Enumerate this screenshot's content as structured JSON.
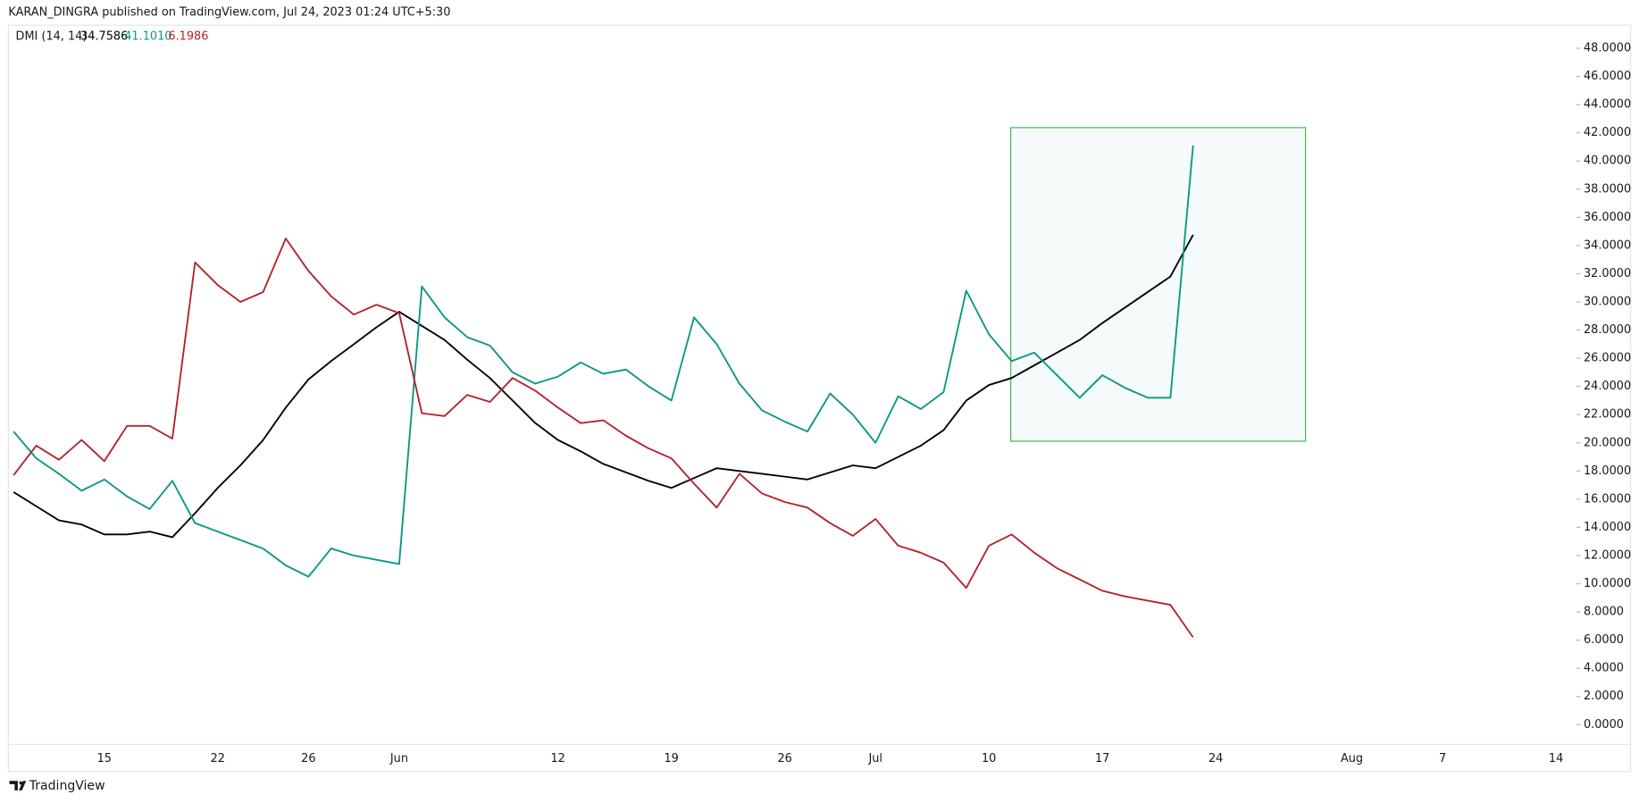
{
  "header": {
    "byline": "KARAN_DINGRA published on TradingView.com, Jul 24, 2023 01:24 UTC+5:30"
  },
  "footer": {
    "brand": "TradingView"
  },
  "chart_data": {
    "type": "line",
    "indicator": "DMI (14, 14)",
    "legend_values": [
      "34.7586",
      "41.1010",
      "6.1986"
    ],
    "categories": [
      null,
      null,
      null,
      null,
      "15",
      null,
      null,
      null,
      null,
      "22",
      null,
      null,
      null,
      "26",
      null,
      null,
      null,
      "Jun",
      null,
      null,
      null,
      null,
      null,
      null,
      "12",
      null,
      null,
      null,
      null,
      "19",
      null,
      null,
      null,
      null,
      "26",
      null,
      null,
      null,
      "Jul",
      null,
      null,
      null,
      null,
      "10",
      null,
      null,
      null,
      null,
      "17",
      null,
      null,
      null,
      null,
      "24",
      null,
      null,
      null,
      null,
      null,
      "Aug",
      null,
      null,
      null,
      "7",
      null,
      null,
      null,
      null,
      "14",
      null
    ],
    "series": [
      {
        "color": "#000000",
        "values": [
          16.5,
          15.5,
          14.5,
          14.2,
          13.5,
          13.5,
          13.7,
          13.3,
          15.0,
          16.8,
          18.4,
          20.2,
          22.5,
          24.5,
          25.8,
          27.0,
          28.2,
          29.3,
          28.3,
          27.3,
          25.9,
          24.6,
          23.0,
          21.4,
          20.2,
          19.4,
          18.5,
          17.9,
          17.3,
          16.8,
          17.5,
          18.2,
          18.0,
          17.8,
          17.6,
          17.4,
          17.9,
          18.4,
          18.2,
          19.0,
          19.8,
          20.9,
          23.0,
          24.1,
          24.6,
          25.5,
          26.4,
          27.3,
          28.5,
          29.6,
          30.7,
          31.8,
          34.7586,
          null,
          null,
          null,
          null,
          null,
          null,
          null,
          null,
          null,
          null,
          null,
          null,
          null,
          null,
          null,
          null,
          null
        ]
      },
      {
        "color": "#089981",
        "values": [
          20.8,
          18.9,
          17.8,
          16.6,
          17.4,
          16.2,
          15.3,
          17.3,
          14.3,
          13.7,
          13.1,
          12.5,
          11.3,
          10.5,
          12.5,
          12.0,
          11.7,
          11.4,
          31.1,
          28.9,
          27.5,
          26.9,
          25.0,
          24.2,
          24.7,
          25.7,
          24.9,
          25.2,
          24.0,
          23.0,
          28.9,
          27.0,
          24.2,
          22.3,
          21.5,
          20.8,
          23.5,
          22.0,
          20.0,
          23.3,
          22.4,
          23.6,
          30.8,
          27.7,
          25.8,
          26.4,
          24.8,
          23.2,
          24.8,
          23.9,
          23.2,
          23.2,
          41.101,
          null,
          null,
          null,
          null,
          null,
          null,
          null,
          null,
          null,
          null,
          null,
          null,
          null,
          null,
          null,
          null,
          null
        ]
      },
      {
        "color": "#b2242e",
        "values": [
          17.7,
          19.8,
          18.8,
          20.2,
          18.7,
          21.2,
          21.2,
          20.3,
          32.8,
          31.2,
          30.0,
          30.7,
          34.5,
          32.2,
          30.4,
          29.1,
          29.8,
          29.2,
          22.1,
          21.9,
          23.4,
          22.9,
          24.6,
          23.7,
          22.5,
          21.4,
          21.6,
          20.5,
          19.6,
          18.9,
          17.1,
          15.4,
          17.8,
          16.4,
          15.8,
          15.4,
          14.3,
          13.4,
          14.6,
          12.7,
          12.2,
          11.5,
          9.7,
          12.7,
          13.5,
          12.2,
          11.1,
          10.3,
          9.5,
          9.1,
          8.8,
          8.5,
          6.1986,
          null,
          null,
          null,
          null,
          null,
          null,
          null,
          null,
          null,
          null,
          null,
          null,
          null,
          null,
          null,
          null,
          null
        ]
      }
    ],
    "ylim": [
      -1.4,
      48.6
    ],
    "yticks": [
      {
        "value": 0,
        "label": "0.0000"
      },
      {
        "value": 2,
        "label": "2.0000"
      },
      {
        "value": 4,
        "label": "4.0000"
      },
      {
        "value": 6,
        "label": "6.0000"
      },
      {
        "value": 8,
        "label": "8.0000"
      },
      {
        "value": 10,
        "label": "10.0000"
      },
      {
        "value": 12,
        "label": "12.0000"
      },
      {
        "value": 14,
        "label": "14.0000"
      },
      {
        "value": 16,
        "label": "16.0000"
      },
      {
        "value": 18,
        "label": "18.0000"
      },
      {
        "value": 20,
        "label": "20.0000"
      },
      {
        "value": 22,
        "label": "22.0000"
      },
      {
        "value": 24,
        "label": "24.0000"
      },
      {
        "value": 26,
        "label": "26.0000"
      },
      {
        "value": 28,
        "label": "28.0000"
      },
      {
        "value": 30,
        "label": "30.0000"
      },
      {
        "value": 32,
        "label": "32.0000"
      },
      {
        "value": 34,
        "label": "34.0000"
      },
      {
        "value": 36,
        "label": "36.0000"
      },
      {
        "value": 38,
        "label": "38.0000"
      },
      {
        "value": 40,
        "label": "40.0000"
      },
      {
        "value": 42,
        "label": "42.0000"
      },
      {
        "value": 44,
        "label": "44.0000"
      },
      {
        "value": 46,
        "label": "46.0000"
      },
      {
        "value": 48,
        "label": "48.0000"
      }
    ],
    "grid": false
  }
}
